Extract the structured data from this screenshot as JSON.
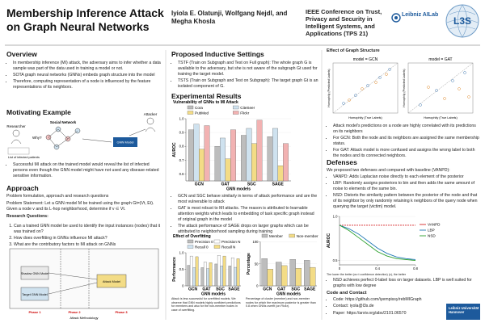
{
  "header": {
    "title": "Membership Inference Attack on Graph Neural Networks",
    "authors": "Iyiola E. Olatunji, Wolfgang Nejdl, and Megha Khosla",
    "venue": "IEEE Conference on Trust, Privacy and Security in Intelligent Systems, and Applications (TPS 21)",
    "logo1": "Leibniz AILab",
    "logo2": "L3S"
  },
  "overview": {
    "heading": "Overview",
    "bullets": [
      "In membership inference (MI) attack, the adversary aims to infer whether a data sample was part of the data used in training a model or not.",
      "SOTA graph neural networks (GNNs) embeds graph structure into the model",
      "Therefore, computing representation of a node is influenced by the feature representations of its neighbors."
    ]
  },
  "motivating": {
    "heading": "Motivating Example",
    "researcher": "Researcher",
    "attacker": "Attacker",
    "network": "Social Network",
    "why": "Why?",
    "model": "GNN Model",
    "list": "List of infected patients",
    "bullet": "Successful MI attack on the trained model would reveal the list of infected persons even though the GNN model might have not used any disease-related sensitive information."
  },
  "approach": {
    "heading": "Approach",
    "intro": "Problem formulation, approach and research questions",
    "problem": "Problem Statement: Let a GNN model M be trained using the graph Gt=(Vt, Et). Given a node v and its L-hop neighborhood, determine if v ∈ Vt.",
    "rq_heading": "Research Questions:",
    "questions": [
      "Can a trained GNN model be used to identify the input instances (nodes) that it was trained on?",
      "How does overfitting in GNNs influence MI attack?",
      "What are the contributory factors to MI attack on GNNs"
    ],
    "phases": [
      "Phase 1",
      "Phase 2",
      "Phase 3"
    ],
    "boxes": [
      "Shadow GNN Model",
      "Target GNN Model",
      "Attack Model"
    ],
    "figure_caption": "Attack Methodology"
  },
  "settings": {
    "heading": "Proposed Inductive Settings",
    "bullets": [
      "TSTF (Train on Subgraph and Test on Full graph): The whole graph G is available to the adversary, but she is not aware of the subgraph Gt used for training the target model.",
      "TSTS (Train on Subgraph and Test on Subgraph): The target graph Gt is an isolated component of G."
    ]
  },
  "results": {
    "heading": "Experimental Results",
    "chart": {
      "type": "bar",
      "title": "Vulnerability of GNNs to MI Attack",
      "categories": [
        "GCN",
        "GAT",
        "SGC",
        "SAGE"
      ],
      "series": [
        {
          "name": "Cora",
          "color": "#bdbdbd",
          "values": [
            0.92,
            0.8,
            0.88,
            0.87
          ]
        },
        {
          "name": "CiteSeer",
          "color": "#cfe2ef",
          "values": [
            0.96,
            0.86,
            0.93,
            0.93
          ]
        },
        {
          "name": "PubMed",
          "color": "#f3dc86",
          "values": [
            0.78,
            0.71,
            0.82,
            0.66
          ]
        },
        {
          "name": "Flickr",
          "color": "#f2b2b2",
          "values": [
            0.95,
            0.92,
            0.99,
            0.82
          ]
        }
      ],
      "ylim": [
        0.55,
        1
      ],
      "yticks": [
        0.6,
        0.7,
        0.8,
        0.9,
        {
          "value": 1,
          "label": "1.0"
        }
      ],
      "ylabel": "AUROC",
      "xlabel": "GNN models"
    },
    "bullets": [
      "GCN and SGC behave similarly in terms of attack performance and are the most vulnerable to attack",
      "GAT is most robust to MI attacks. The reason is attributed to learnable attention weights which leads to embedding of task specific graph instead of original graph in the model",
      "The attack performance of SAGE drops on larger graphs which can be attributed to neighborhood sampling during training"
    ],
    "overfit": {
      "type": "bar",
      "title": "Effect of Overfitting",
      "categories": [
        "GCN",
        "GAT",
        "SGC",
        "SAGE"
      ],
      "series": [
        {
          "name": "Precision 0",
          "color": "#bdbdbd",
          "values": [
            0.62,
            0.55,
            0.66,
            0.6
          ]
        },
        {
          "name": "Precision N",
          "color": "#ffffff",
          "values": [
            0.9,
            0.72,
            0.92,
            0.85
          ]
        },
        {
          "name": "Recall 0",
          "color": "#cfe2ef",
          "values": [
            0.55,
            0.52,
            0.6,
            0.56
          ]
        },
        {
          "name": "Recall N",
          "color": "#f3dc86",
          "values": [
            0.88,
            0.7,
            0.9,
            0.82
          ]
        }
      ],
      "ylim": [
        0,
        1
      ],
      "yticks": [
        0,
        0.5,
        {
          "value": 1,
          "label": "1.0"
        }
      ],
      "ylabel": "Performance",
      "xlabel": "GNN models",
      "caption": "Attack is less successful for overfitted models. We observe that GNN models highly confident predictions for members and also for the non-member nodes in case of overfitting."
    },
    "percentage": {
      "type": "bar",
      "title": "",
      "categories": [
        "GCN",
        "GAT",
        "SGC",
        "SAGE"
      ],
      "series": [
        {
          "name": "Member",
          "color": "#bdbdbd",
          "values": [
            62,
            54,
            60,
            58
          ]
        },
        {
          "name": "Non-member",
          "color": "#f3dc86",
          "values": [
            38,
            46,
            40,
            42
          ]
        }
      ],
      "ylim": [
        0,
        100
      ],
      "yticks": [
        0,
        50,
        100
      ],
      "ylabel": "Percentage",
      "xlabel": "GNN models",
      "caption": "Percentage of cluster (member) and non-member nodes for which the maximum posterior is greater than 0.8 when GNNs overfit (on Flickr)."
    }
  },
  "structure": {
    "heading": "Effect of Graph Structure",
    "panels": [
      "model = GCN",
      "model = GAT"
    ],
    "xlabel": "Homophily (True Labels)",
    "ylabel": "Homophily (Predicted Labels)",
    "bullets": [
      "Attack model's predictions on a node are highly correlated with its predictions on its neighbors",
      "For GCN: Both the node and its neighbors are assigned the same membership status.",
      "For GAT: Attack model is more confused and assigns the wrong label to both the nodes and its connected neighbors."
    ]
  },
  "defenses": {
    "heading": "Defenses",
    "intro": "We proposed two defenses and compared with baseline (VANPD):",
    "bullets": [
      "VANPD: Adds Laplacian noise directly to each element of the posterior",
      "LBP: Randomly assigns posteriors to bin and then adds the same amount of noise to elements of the same bin.",
      "NSD: Distorts the similarity pattern between the posterior of the node and that of its neighbor by only randomly retaining k neighbors of the query node when querying the target (victim) model."
    ],
    "chart": {
      "type": "line",
      "x": [
        0,
        0.1,
        0.2,
        0.3,
        0.4,
        0.5,
        0.6,
        0.7,
        0.8
      ],
      "series": [
        {
          "name": "VANPD",
          "color": "#d62728",
          "values": [
            0.9,
            0.9,
            0.9,
            0.9,
            0.9,
            0.9,
            0.9,
            0.9,
            0.9
          ]
        },
        {
          "name": "LBP",
          "color": "#1f77b4",
          "values": [
            0.9,
            0.86,
            0.8,
            0.72,
            0.64,
            0.58,
            0.54,
            0.52,
            0.51
          ]
        },
        {
          "name": "NSD",
          "color": "#2ca02c",
          "values": [
            0.9,
            0.84,
            0.76,
            0.68,
            0.6,
            0.55,
            0.52,
            0.51,
            0.5
          ]
        }
      ],
      "xlim": [
        0,
        0.8
      ],
      "xticks": [
        0,
        0.4,
        0.8
      ],
      "ylim": [
        0.45,
        1
      ],
      "yticks": [
        0.5,
        {
          "value": 1,
          "label": "1.0"
        }
      ],
      "ylabel": "AUROC",
      "caption": "The lower the better (w.r.t confidence detection) (c), the better"
    },
    "bullet2": "NSD achieves perfect 0-label loss on larger datasets. LBP is well suited for graphs with low degree"
  },
  "contact": {
    "heading": "Code and Contact",
    "items": [
      "Code: https://github.com/iyempissy/rebMIGraph",
      "Contact: iyola@l3s.de",
      "Paper: https://arxiv.org/abs/2101.06570"
    ]
  },
  "footer_logo": "Leibniz Universität Hannover"
}
